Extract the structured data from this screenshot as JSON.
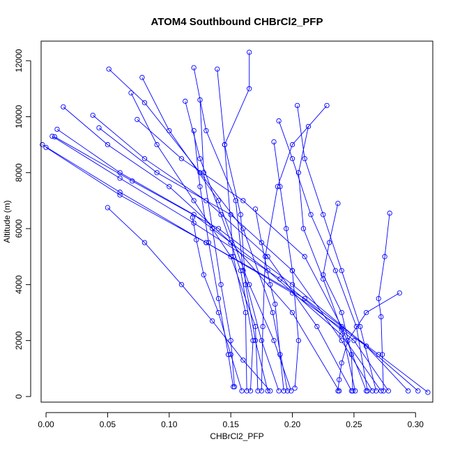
{
  "chart_data": {
    "type": "scatter",
    "title": "ATOM4 Southbound CHBrCl2_PFP",
    "xlabel": "CHBrCl2_PFP",
    "ylabel": "Altitude (m)",
    "xlim": [
      -0.004,
      0.314
    ],
    "ylim": [
      -200,
      12700
    ],
    "x_ticks": [
      0.0,
      0.05,
      0.1,
      0.15,
      0.2,
      0.25,
      0.3
    ],
    "x_tick_labels": [
      "0.00",
      "0.05",
      "0.10",
      "0.15",
      "0.20",
      "0.25",
      "0.30"
    ],
    "y_ticks": [
      0,
      2000,
      4000,
      6000,
      8000,
      10000,
      12000
    ],
    "y_tick_labels": [
      "0",
      "2000",
      "4000",
      "6000",
      "8000",
      "10000",
      "12000"
    ],
    "grid": false,
    "legend": "none",
    "style": {
      "color": "#0000ff",
      "marker": "open-circle",
      "connected": true
    },
    "series": [
      {
        "x": [
          0.165,
          0.165,
          0.145,
          0.152,
          0.162,
          0.163
        ],
        "y": [
          12300,
          11000,
          9000,
          5000,
          3000,
          200
        ]
      },
      {
        "x": [
          0.051,
          0.08,
          0.125,
          0.16,
          0.184,
          0.196
        ],
        "y": [
          11700,
          10500,
          8000,
          6000,
          3000,
          200
        ]
      },
      {
        "x": [
          0.078,
          0.1,
          0.14,
          0.165,
          0.185,
          0.199
        ],
        "y": [
          11400,
          9500,
          7000,
          4000,
          2000,
          200
        ]
      },
      {
        "x": [
          0.12,
          0.13,
          0.154,
          0.16,
          0.175,
          0.189
        ],
        "y": [
          11750,
          9500,
          7000,
          4500,
          2000,
          200
        ]
      },
      {
        "x": [
          0.139,
          0.145,
          0.158,
          0.162,
          0.17,
          0.18
        ],
        "y": [
          11700,
          9000,
          6500,
          4000,
          2000,
          200
        ]
      },
      {
        "x": [
          0.228,
          0.2,
          0.188,
          0.178,
          0.176,
          0.175
        ],
        "y": [
          10400,
          9000,
          7500,
          5000,
          2500,
          200
        ]
      },
      {
        "x": [
          0.069,
          0.09,
          0.12,
          0.15,
          0.17,
          0.172
        ],
        "y": [
          10850,
          9000,
          7000,
          5000,
          2500,
          200
        ]
      },
      {
        "x": [
          0.113,
          0.125,
          0.142,
          0.158,
          0.168,
          0.166
        ],
        "y": [
          10550,
          8500,
          6500,
          4500,
          2000,
          200
        ]
      },
      {
        "x": [
          0.014,
          0.05,
          0.1,
          0.15,
          0.2,
          0.238
        ],
        "y": [
          10350,
          9000,
          7500,
          5500,
          3000,
          200
        ]
      },
      {
        "x": [
          0.038,
          0.08,
          0.13,
          0.18,
          0.22,
          0.248
        ],
        "y": [
          10050,
          8500,
          7000,
          5000,
          2500,
          200
        ]
      },
      {
        "x": [
          0.074,
          0.11,
          0.16,
          0.21,
          0.24,
          0.26
        ],
        "y": [
          9900,
          8500,
          7000,
          5000,
          2500,
          200
        ]
      },
      {
        "x": [
          0.043,
          0.09,
          0.15,
          0.2,
          0.24,
          0.265
        ],
        "y": [
          9600,
          8000,
          6500,
          4500,
          2000,
          200
        ]
      },
      {
        "x": [
          0.009,
          0.06,
          0.12,
          0.18,
          0.24,
          0.272
        ],
        "y": [
          9550,
          8000,
          6500,
          4500,
          2200,
          200
        ]
      },
      {
        "x": [
          0.005,
          0.06,
          0.12,
          0.19,
          0.25,
          0.278
        ],
        "y": [
          9300,
          7800,
          6200,
          4200,
          2000,
          200
        ]
      },
      {
        "x": [
          0.007,
          0.07,
          0.14,
          0.2,
          0.26,
          0.294
        ],
        "y": [
          9280,
          7700,
          6000,
          4000,
          1800,
          200
        ]
      },
      {
        "x": [
          -0.003,
          0.06,
          0.13,
          0.21,
          0.27,
          0.31
        ],
        "y": [
          9000,
          7300,
          5500,
          3500,
          1500,
          150
        ]
      },
      {
        "x": [
          0.0,
          0.06,
          0.13,
          0.2,
          0.26,
          0.302
        ],
        "y": [
          8900,
          7200,
          5500,
          3700,
          1800,
          200
        ]
      },
      {
        "x": [
          0.189,
          0.2,
          0.215,
          0.235,
          0.252,
          0.261
        ],
        "y": [
          9850,
          8500,
          6500,
          4500,
          2500,
          200
        ]
      },
      {
        "x": [
          0.204,
          0.21,
          0.225,
          0.24,
          0.255,
          0.268
        ],
        "y": [
          10400,
          8500,
          6500,
          4500,
          2500,
          200
        ]
      },
      {
        "x": [
          0.213,
          0.205,
          0.209,
          0.225,
          0.24,
          0.251
        ],
        "y": [
          9650,
          8000,
          6000,
          4200,
          2400,
          200
        ]
      },
      {
        "x": [
          0.237,
          0.23,
          0.225,
          0.24,
          0.248,
          0.249
        ],
        "y": [
          6900,
          5500,
          4350,
          3000,
          1500,
          200
        ]
      },
      {
        "x": [
          0.279,
          0.275,
          0.27,
          0.272,
          0.273,
          0.274
        ],
        "y": [
          6550,
          5000,
          3500,
          2850,
          1500,
          200
        ]
      },
      {
        "x": [
          0.287,
          0.26,
          0.245,
          0.24,
          0.238,
          0.237
        ],
        "y": [
          3700,
          3000,
          2000,
          1200,
          600,
          200
        ]
      },
      {
        "x": [
          0.12,
          0.125,
          0.132,
          0.14,
          0.148,
          0.152
        ],
        "y": [
          9500,
          7500,
          5500,
          3500,
          1500,
          350
        ]
      },
      {
        "x": [
          0.125,
          0.128,
          0.135,
          0.142,
          0.15,
          0.153
        ],
        "y": [
          10600,
          8000,
          6000,
          4000,
          2000,
          350
        ]
      },
      {
        "x": [
          0.119,
          0.122,
          0.128,
          0.14,
          0.15,
          0.159
        ],
        "y": [
          6400,
          5600,
          4350,
          3000,
          1500,
          200
        ]
      },
      {
        "x": [
          0.05,
          0.08,
          0.11,
          0.135,
          0.16,
          0.182
        ],
        "y": [
          6750,
          5500,
          4000,
          2700,
          1300,
          200
        ]
      },
      {
        "x": [
          0.17,
          0.175,
          0.182,
          0.186,
          0.19,
          0.193
        ],
        "y": [
          6700,
          5500,
          4000,
          3300,
          1500,
          200
        ]
      },
      {
        "x": [
          0.185,
          0.19,
          0.195,
          0.2,
          0.205,
          0.202
        ],
        "y": [
          9100,
          7500,
          6000,
          4500,
          2000,
          300
        ]
      }
    ]
  }
}
